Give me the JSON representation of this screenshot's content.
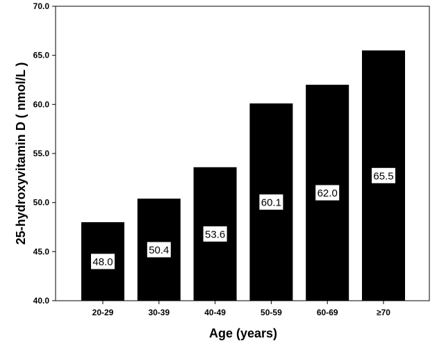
{
  "chart_data": {
    "type": "bar",
    "categories": [
      "20-29",
      "30-39",
      "40-49",
      "50-59",
      "60-69",
      "≥70"
    ],
    "values": [
      48.0,
      50.4,
      53.6,
      60.1,
      62.0,
      65.5
    ],
    "data_labels": [
      "48.0",
      "50.4",
      "53.6",
      "60.1",
      "62.0",
      "65.5"
    ],
    "title": "",
    "xlabel": "Age (years)",
    "ylabel": "25-hydroxyvitamin D ( nmol/L )",
    "ylim": [
      40.0,
      70.0
    ],
    "yticks": [
      "40.0",
      "45.0",
      "50.0",
      "55.0",
      "60.0",
      "65.0",
      "70.0"
    ],
    "ytick_values": [
      40,
      45,
      50,
      55,
      60,
      65,
      70
    ],
    "grid": false,
    "legend": "none",
    "bar_color": "#000000",
    "label_box_color": "#ffffff"
  }
}
